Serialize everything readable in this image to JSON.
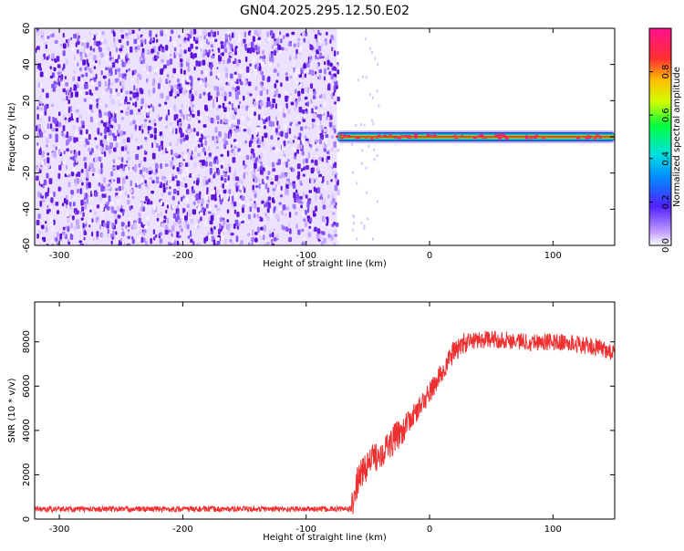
{
  "chart_data": [
    {
      "type": "heatmap",
      "title": "GN04.2025.295.12.50.E02",
      "xlabel": "Height of straight line (km)",
      "ylabel": "Frequency (Hz)",
      "xlim": [
        -320,
        150
      ],
      "ylim": [
        -60,
        60
      ],
      "x_ticks": [
        -300,
        -200,
        -100,
        0,
        100
      ],
      "y_ticks": [
        -60,
        -40,
        -20,
        0,
        20,
        40,
        60
      ],
      "noise_region_x": [
        -320,
        -75
      ],
      "signal_line": {
        "x_start": -75,
        "x_end": 150,
        "frequency": 0,
        "color_peak": "#e8463a",
        "color_band": "#22c04a",
        "color_edge": "#1a3cf0"
      },
      "noise_color": "#6a1fe0",
      "colorbar": {
        "label": "Normalized spectral amplitude",
        "min": 0.0,
        "max": 1.0,
        "ticks": [
          "0.0",
          "0.2",
          "0.4",
          "0.6",
          "0.8"
        ],
        "tick_values": [
          0.0,
          0.2,
          0.4,
          0.6,
          0.8
        ],
        "colors": [
          "#ffffff",
          "#b070ff",
          "#4020ff",
          "#00c0ff",
          "#00ff60",
          "#f0ff00",
          "#ff4040",
          "#ff2080"
        ]
      }
    },
    {
      "type": "line",
      "title": "",
      "xlabel": "Height of straight line (km)",
      "ylabel": "SNR (10 * v/v)",
      "xlim": [
        -320,
        150
      ],
      "ylim": [
        0,
        9800
      ],
      "x_ticks": [
        -300,
        -200,
        -100,
        0,
        100
      ],
      "y_ticks": [
        0,
        2000,
        4000,
        6000,
        8000
      ],
      "color": "#f03030",
      "series": [
        {
          "name": "SNR",
          "x": [
            -320,
            -200,
            -100,
            -63,
            -58,
            -50,
            -40,
            -30,
            -20,
            -10,
            0,
            10,
            20,
            30,
            40,
            60,
            80,
            100,
            120,
            140,
            150
          ],
          "y": [
            450,
            450,
            450,
            450,
            1800,
            2500,
            3000,
            3500,
            4200,
            4900,
            5700,
            6600,
            7600,
            8000,
            8100,
            8100,
            8000,
            8000,
            7900,
            7700,
            7500
          ]
        }
      ]
    }
  ]
}
